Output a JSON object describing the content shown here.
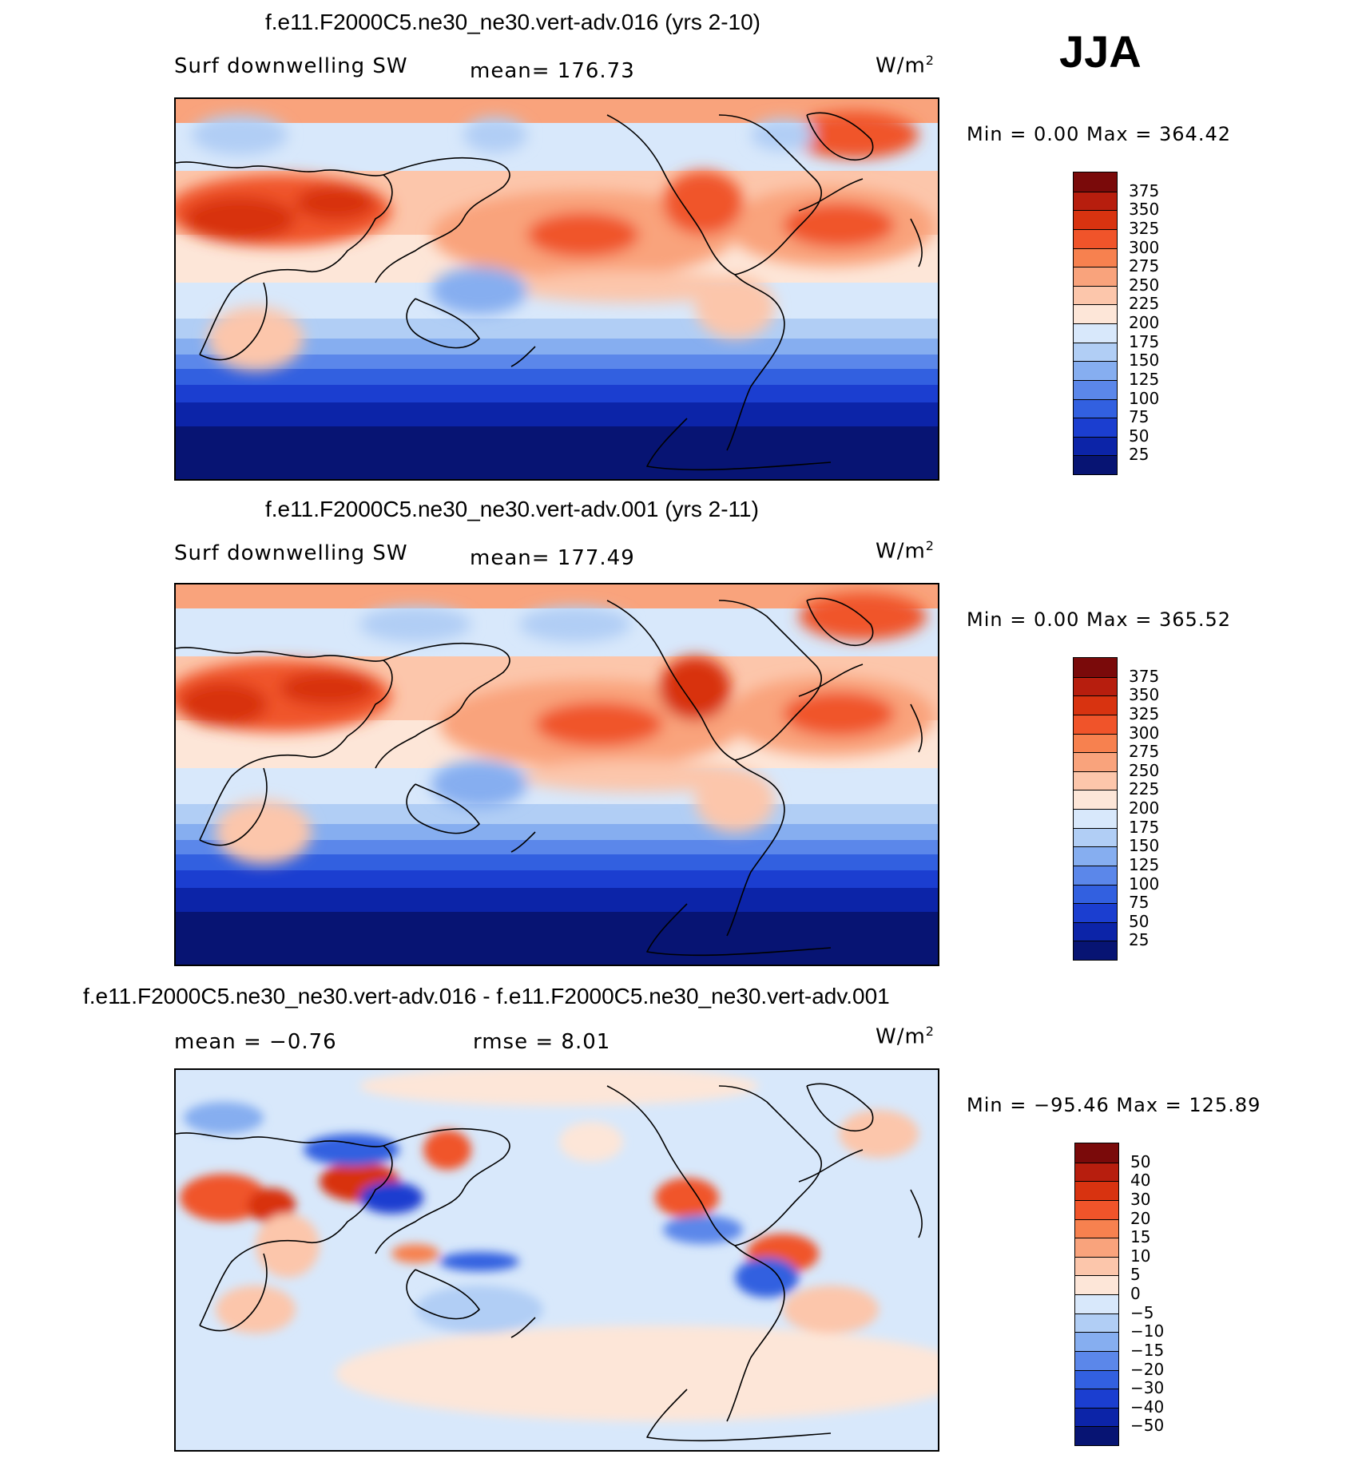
{
  "season": "JJA",
  "panels": [
    {
      "title": "f.e11.F2000C5.ne30_ne30.vert-adv.016 (yrs 2-10)",
      "left_label": "Surf downwelling SW",
      "center_label": "mean=  176.73",
      "units": "W/m",
      "units_sup": "2",
      "minmax": "Min  =     0.00  Max  =  364.42",
      "colorbar": {
        "labels": [
          "375",
          "350",
          "325",
          "300",
          "275",
          "250",
          "225",
          "200",
          "175",
          "150",
          "125",
          "100",
          "75",
          "50",
          "25"
        ],
        "colors": [
          "#7a0a0a",
          "#b71e0e",
          "#d83310",
          "#f0542a",
          "#f7814f",
          "#f9a37c",
          "#fcc6ab",
          "#fde6d8",
          "#d8e8fb",
          "#b1cef5",
          "#86aef0",
          "#5b87ea",
          "#3260e0",
          "#1b3ed0",
          "#0c24a8",
          "#071473"
        ]
      }
    },
    {
      "title": "f.e11.F2000C5.ne30_ne30.vert-adv.001 (yrs 2-11)",
      "left_label": "Surf downwelling SW",
      "center_label": "mean=  177.49",
      "units": "W/m",
      "units_sup": "2",
      "minmax": "Min  =     0.00  Max  =  365.52",
      "colorbar": {
        "labels": [
          "375",
          "350",
          "325",
          "300",
          "275",
          "250",
          "225",
          "200",
          "175",
          "150",
          "125",
          "100",
          "75",
          "50",
          "25"
        ],
        "colors": [
          "#7a0a0a",
          "#b71e0e",
          "#d83310",
          "#f0542a",
          "#f7814f",
          "#f9a37c",
          "#fcc6ab",
          "#fde6d8",
          "#d8e8fb",
          "#b1cef5",
          "#86aef0",
          "#5b87ea",
          "#3260e0",
          "#1b3ed0",
          "#0c24a8",
          "#071473"
        ]
      }
    },
    {
      "title": "f.e11.F2000C5.ne30_ne30.vert-adv.016 - f.e11.F2000C5.ne30_ne30.vert-adv.001",
      "left_label": "mean  =   −0.76",
      "center_label": "rmse  =     8.01",
      "units": "W/m",
      "units_sup": "2",
      "minmax": "Min  =  −95.46  Max  =  125.89",
      "colorbar": {
        "labels": [
          "50",
          "40",
          "30",
          "20",
          "15",
          "10",
          "5",
          "0",
          "−5",
          "−10",
          "−15",
          "−20",
          "−30",
          "−40",
          "−50"
        ],
        "colors": [
          "#7a0a0a",
          "#b71e0e",
          "#d83310",
          "#f0542a",
          "#f7814f",
          "#f9a37c",
          "#fcc6ab",
          "#fde6d8",
          "#d8e8fb",
          "#b1cef5",
          "#86aef0",
          "#5b87ea",
          "#3260e0",
          "#1b3ed0",
          "#0c24a8",
          "#071473"
        ]
      }
    }
  ]
}
